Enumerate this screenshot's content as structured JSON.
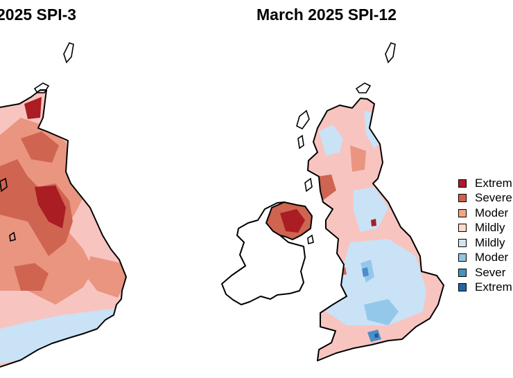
{
  "panels": [
    {
      "title": "2025 SPI-3"
    },
    {
      "title": "March 2025 SPI-12"
    }
  ],
  "legend": [
    {
      "label": "Extrem",
      "color": "#b2182b"
    },
    {
      "label": "Severe",
      "color": "#d6604d"
    },
    {
      "label": "Moder",
      "color": "#f4a582"
    },
    {
      "label": "Mildly",
      "color": "#fddbc7"
    },
    {
      "label": "Mildly",
      "color": "#d1e5f0"
    },
    {
      "label": "Moder",
      "color": "#92c5de"
    },
    {
      "label": "Sever",
      "color": "#4393c3"
    },
    {
      "label": "Extrem",
      "color": "#2166ac"
    }
  ],
  "map_colors": {
    "outline": "#000000",
    "mild_dry": "#f8c4c0",
    "moderate_dry": "#e99580",
    "severe_dry": "#cf6450",
    "extreme_dry": "#a91d23",
    "mild_wet": "#c9e2f6",
    "moderate_wet": "#93c8ea",
    "severe_wet": "#4b8fc8",
    "extreme_wet": "#1a5a9c"
  }
}
